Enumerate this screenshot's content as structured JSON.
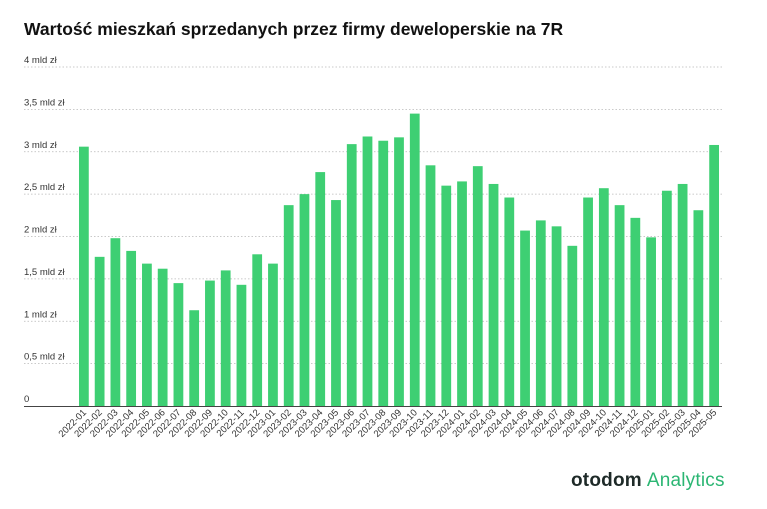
{
  "page": {
    "title": "Wartość mieszkań sprzedanych przez firmy deweloperskie na 7R"
  },
  "brand": {
    "name": "otodom",
    "suffix": "Analytics",
    "color_dark": "#1e2a28",
    "color_green": "#2bb673"
  },
  "chart_data": {
    "type": "bar",
    "title": "Wartość mieszkań sprzedanych przez firmy deweloperskie na 7R",
    "xlabel": "",
    "ylabel": "",
    "ylim": [
      0,
      4
    ],
    "yticks": [
      {
        "value": 0,
        "label": "0"
      },
      {
        "value": 0.5,
        "label": "0,5 mld zł"
      },
      {
        "value": 1,
        "label": "1 mld zł"
      },
      {
        "value": 1.5,
        "label": "1,5 mld zł"
      },
      {
        "value": 2,
        "label": "2 mld zł"
      },
      {
        "value": 2.5,
        "label": "2,5 mld zł"
      },
      {
        "value": 3,
        "label": "3 mld zł"
      },
      {
        "value": 3.5,
        "label": "3,5 mld zł"
      },
      {
        "value": 4,
        "label": "4 mld zł"
      }
    ],
    "grid": true,
    "bar_color": "#3ecf73",
    "categories": [
      "2022-01",
      "2022-02",
      "2022-03",
      "2022-04",
      "2022-05",
      "2022-06",
      "2022-07",
      "2022-08",
      "2022-09",
      "2022-10",
      "2022-11",
      "2022-12",
      "2023-01",
      "2023-02",
      "2023-03",
      "2023-04",
      "2023-05",
      "2023-06",
      "2023-07",
      "2023-08",
      "2023-09",
      "2023-10",
      "2023-11",
      "2023-12",
      "2024-01",
      "2024-02",
      "2024-03",
      "2024-04",
      "2024-05",
      "2024-06",
      "2024-07",
      "2024-08",
      "2024-09",
      "2024-10",
      "2024-11",
      "2024-12",
      "2025-01",
      "2025-02",
      "2025-03",
      "2025-04",
      "2025-05"
    ],
    "values": [
      3.06,
      1.76,
      1.98,
      1.83,
      1.68,
      1.62,
      1.45,
      1.13,
      1.48,
      1.6,
      1.43,
      1.79,
      1.68,
      2.37,
      2.5,
      2.76,
      2.43,
      3.09,
      3.18,
      3.13,
      3.17,
      3.45,
      2.84,
      2.6,
      2.65,
      2.83,
      2.62,
      2.46,
      2.07,
      2.19,
      2.12,
      1.89,
      2.46,
      2.57,
      2.37,
      2.22,
      1.99,
      2.54,
      2.62,
      2.31,
      3.08
    ]
  }
}
